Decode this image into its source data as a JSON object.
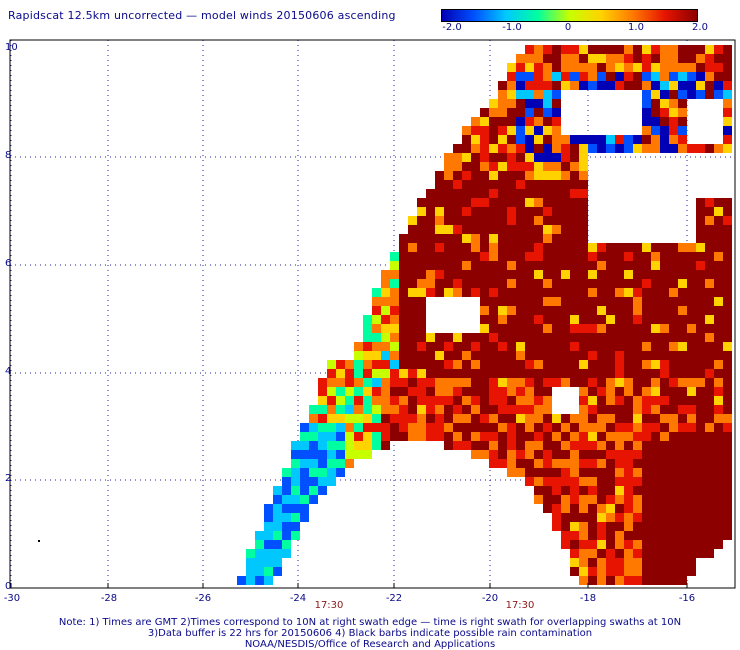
{
  "title": "Rapidscat 12.5km uncorrected — model winds 20150606 ascending",
  "colorbar": {
    "labels": [
      "-2.0",
      "-1.0",
      "0",
      "1.0",
      "2.0"
    ],
    "min": -2.0,
    "max": 2.0,
    "colors": [
      "#0000b4",
      "#0050ff",
      "#00c8ff",
      "#00ffa0",
      "#c8ff00",
      "#ffd200",
      "#ff7800",
      "#e61400",
      "#8c0000"
    ]
  },
  "axes": {
    "x_ticks": [
      "-30",
      "-28",
      "-26",
      "-24",
      "-22",
      "-20",
      "-18",
      "-16"
    ],
    "y_ticks": [
      "0",
      "2",
      "4",
      "6",
      "8",
      "10"
    ],
    "xlim": [
      -30,
      -15.2
    ],
    "ylim": [
      0,
      10.2
    ]
  },
  "swath_times": [
    "17:30",
    "17:30"
  ],
  "notes": [
    "Note: 1) Times are GMT 2)Times correspond to 10N at right swath edge — time is right swath for overlapping swaths at 10N",
    "3)Data buffer is 22 hrs for 20150606 4) Black barbs indicate possible rain contamination",
    "NOAA/NESDIS/Office of Research and Applications"
  ]
}
